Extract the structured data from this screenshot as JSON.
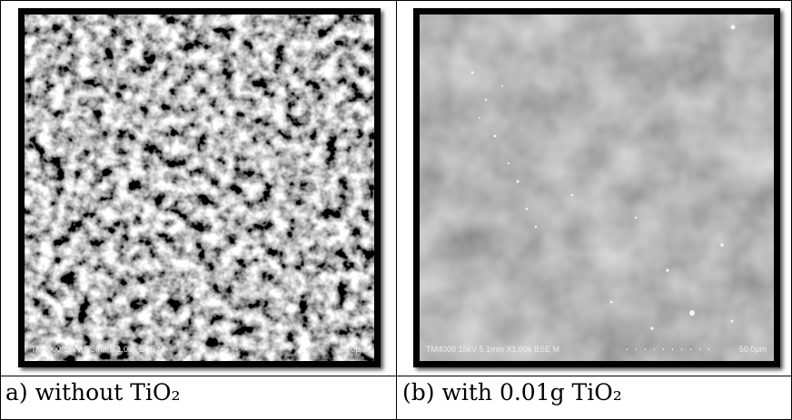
{
  "panels": [
    {
      "scan_info": "TM4000 15kV 5.3mm X1.00k BSE M",
      "scale": "50.0µm",
      "caption": "a) without TiO₂"
    },
    {
      "scan_info": "TM4000 15kV 5.1mm X1.00k BSE M",
      "scale": "50.0µm",
      "caption": "(b) with 0.01g TiO₂"
    }
  ]
}
